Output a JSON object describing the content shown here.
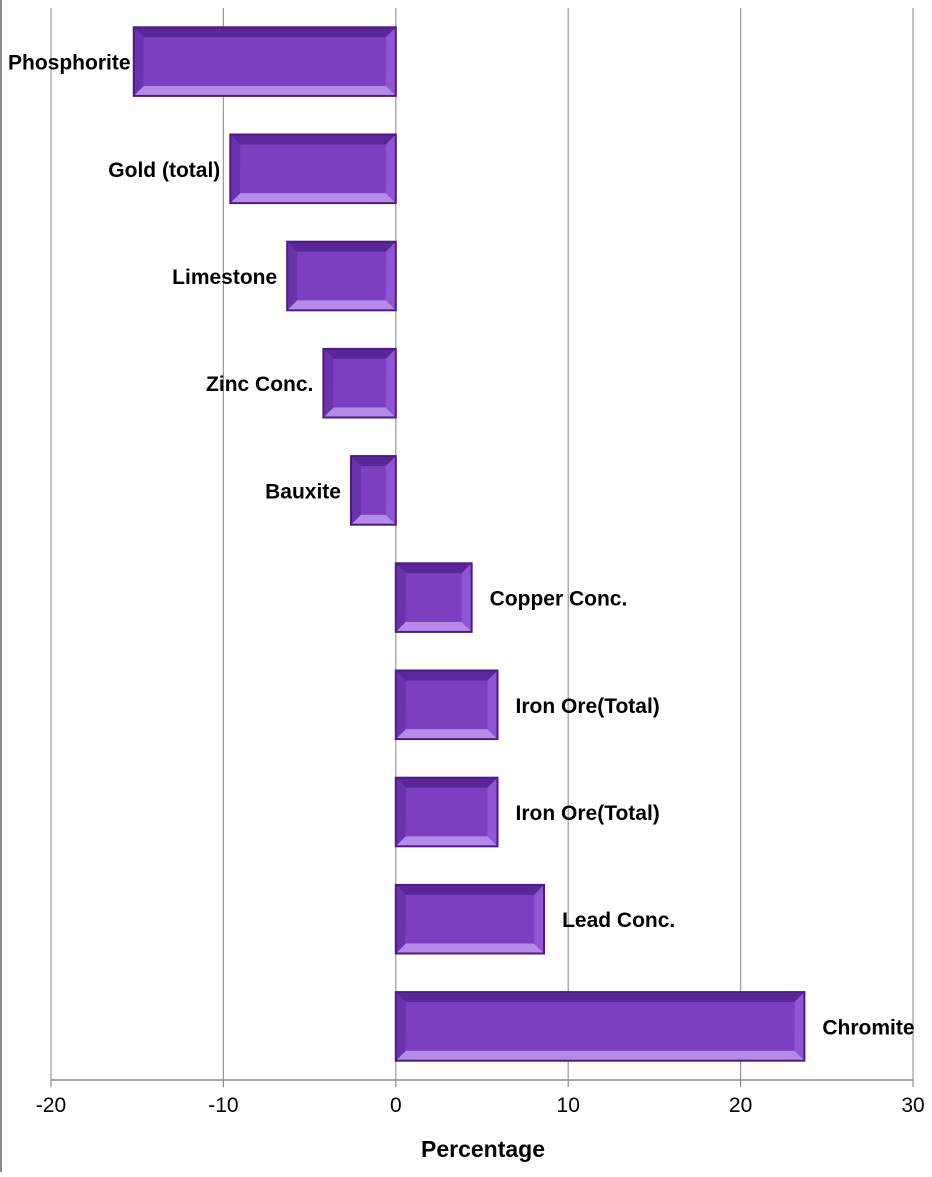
{
  "chart_data": {
    "type": "bar",
    "orientation": "horizontal",
    "title": "",
    "xlabel": "Percentage",
    "ylabel": "",
    "xlim": [
      -20,
      30
    ],
    "x_ticks": [
      "-20",
      "-10",
      "0",
      "10",
      "20",
      "30"
    ],
    "grid": true,
    "legend": "none",
    "categories": [
      "Phosphorite",
      "Gold (total)",
      "Limestone",
      "Zinc Conc.",
      "Bauxite",
      "Copper Conc.",
      "Iron Ore(Total)",
      "Iron Ore(Total)",
      "Lead Conc.",
      "Chromite"
    ],
    "values": [
      -15.2,
      -9.6,
      -6.3,
      -4.2,
      -2.6,
      4.4,
      5.9,
      5.9,
      8.6,
      23.7
    ],
    "colors": {
      "bar": "#7b3fbf",
      "bar_light": "#b58ae8",
      "bar_dark": "#4b1c82",
      "grid": "#9a9a9a",
      "axis": "#8c8c8c",
      "text": "#000000"
    }
  }
}
